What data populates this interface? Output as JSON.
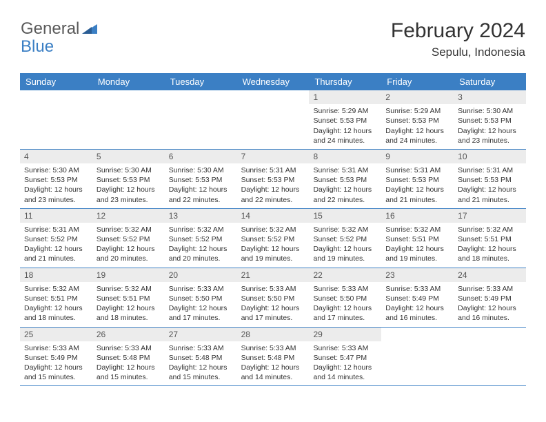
{
  "brand": {
    "part1": "General",
    "part2": "Blue"
  },
  "title": "February 2024",
  "location": "Sepulu, Indonesia",
  "colors": {
    "header_bg": "#3b7fc4",
    "header_text": "#ffffff",
    "daynum_bg": "#ececec",
    "border": "#3b7fc4",
    "body_text": "#333333"
  },
  "day_names": [
    "Sunday",
    "Monday",
    "Tuesday",
    "Wednesday",
    "Thursday",
    "Friday",
    "Saturday"
  ],
  "weeks": [
    [
      {
        "n": "",
        "sr": "",
        "ss": "",
        "dl": ""
      },
      {
        "n": "",
        "sr": "",
        "ss": "",
        "dl": ""
      },
      {
        "n": "",
        "sr": "",
        "ss": "",
        "dl": ""
      },
      {
        "n": "",
        "sr": "",
        "ss": "",
        "dl": ""
      },
      {
        "n": "1",
        "sr": "Sunrise: 5:29 AM",
        "ss": "Sunset: 5:53 PM",
        "dl": "Daylight: 12 hours and 24 minutes."
      },
      {
        "n": "2",
        "sr": "Sunrise: 5:29 AM",
        "ss": "Sunset: 5:53 PM",
        "dl": "Daylight: 12 hours and 24 minutes."
      },
      {
        "n": "3",
        "sr": "Sunrise: 5:30 AM",
        "ss": "Sunset: 5:53 PM",
        "dl": "Daylight: 12 hours and 23 minutes."
      }
    ],
    [
      {
        "n": "4",
        "sr": "Sunrise: 5:30 AM",
        "ss": "Sunset: 5:53 PM",
        "dl": "Daylight: 12 hours and 23 minutes."
      },
      {
        "n": "5",
        "sr": "Sunrise: 5:30 AM",
        "ss": "Sunset: 5:53 PM",
        "dl": "Daylight: 12 hours and 23 minutes."
      },
      {
        "n": "6",
        "sr": "Sunrise: 5:30 AM",
        "ss": "Sunset: 5:53 PM",
        "dl": "Daylight: 12 hours and 22 minutes."
      },
      {
        "n": "7",
        "sr": "Sunrise: 5:31 AM",
        "ss": "Sunset: 5:53 PM",
        "dl": "Daylight: 12 hours and 22 minutes."
      },
      {
        "n": "8",
        "sr": "Sunrise: 5:31 AM",
        "ss": "Sunset: 5:53 PM",
        "dl": "Daylight: 12 hours and 22 minutes."
      },
      {
        "n": "9",
        "sr": "Sunrise: 5:31 AM",
        "ss": "Sunset: 5:53 PM",
        "dl": "Daylight: 12 hours and 21 minutes."
      },
      {
        "n": "10",
        "sr": "Sunrise: 5:31 AM",
        "ss": "Sunset: 5:53 PM",
        "dl": "Daylight: 12 hours and 21 minutes."
      }
    ],
    [
      {
        "n": "11",
        "sr": "Sunrise: 5:31 AM",
        "ss": "Sunset: 5:52 PM",
        "dl": "Daylight: 12 hours and 21 minutes."
      },
      {
        "n": "12",
        "sr": "Sunrise: 5:32 AM",
        "ss": "Sunset: 5:52 PM",
        "dl": "Daylight: 12 hours and 20 minutes."
      },
      {
        "n": "13",
        "sr": "Sunrise: 5:32 AM",
        "ss": "Sunset: 5:52 PM",
        "dl": "Daylight: 12 hours and 20 minutes."
      },
      {
        "n": "14",
        "sr": "Sunrise: 5:32 AM",
        "ss": "Sunset: 5:52 PM",
        "dl": "Daylight: 12 hours and 19 minutes."
      },
      {
        "n": "15",
        "sr": "Sunrise: 5:32 AM",
        "ss": "Sunset: 5:52 PM",
        "dl": "Daylight: 12 hours and 19 minutes."
      },
      {
        "n": "16",
        "sr": "Sunrise: 5:32 AM",
        "ss": "Sunset: 5:51 PM",
        "dl": "Daylight: 12 hours and 19 minutes."
      },
      {
        "n": "17",
        "sr": "Sunrise: 5:32 AM",
        "ss": "Sunset: 5:51 PM",
        "dl": "Daylight: 12 hours and 18 minutes."
      }
    ],
    [
      {
        "n": "18",
        "sr": "Sunrise: 5:32 AM",
        "ss": "Sunset: 5:51 PM",
        "dl": "Daylight: 12 hours and 18 minutes."
      },
      {
        "n": "19",
        "sr": "Sunrise: 5:32 AM",
        "ss": "Sunset: 5:51 PM",
        "dl": "Daylight: 12 hours and 18 minutes."
      },
      {
        "n": "20",
        "sr": "Sunrise: 5:33 AM",
        "ss": "Sunset: 5:50 PM",
        "dl": "Daylight: 12 hours and 17 minutes."
      },
      {
        "n": "21",
        "sr": "Sunrise: 5:33 AM",
        "ss": "Sunset: 5:50 PM",
        "dl": "Daylight: 12 hours and 17 minutes."
      },
      {
        "n": "22",
        "sr": "Sunrise: 5:33 AM",
        "ss": "Sunset: 5:50 PM",
        "dl": "Daylight: 12 hours and 17 minutes."
      },
      {
        "n": "23",
        "sr": "Sunrise: 5:33 AM",
        "ss": "Sunset: 5:49 PM",
        "dl": "Daylight: 12 hours and 16 minutes."
      },
      {
        "n": "24",
        "sr": "Sunrise: 5:33 AM",
        "ss": "Sunset: 5:49 PM",
        "dl": "Daylight: 12 hours and 16 minutes."
      }
    ],
    [
      {
        "n": "25",
        "sr": "Sunrise: 5:33 AM",
        "ss": "Sunset: 5:49 PM",
        "dl": "Daylight: 12 hours and 15 minutes."
      },
      {
        "n": "26",
        "sr": "Sunrise: 5:33 AM",
        "ss": "Sunset: 5:48 PM",
        "dl": "Daylight: 12 hours and 15 minutes."
      },
      {
        "n": "27",
        "sr": "Sunrise: 5:33 AM",
        "ss": "Sunset: 5:48 PM",
        "dl": "Daylight: 12 hours and 15 minutes."
      },
      {
        "n": "28",
        "sr": "Sunrise: 5:33 AM",
        "ss": "Sunset: 5:48 PM",
        "dl": "Daylight: 12 hours and 14 minutes."
      },
      {
        "n": "29",
        "sr": "Sunrise: 5:33 AM",
        "ss": "Sunset: 5:47 PM",
        "dl": "Daylight: 12 hours and 14 minutes."
      },
      {
        "n": "",
        "sr": "",
        "ss": "",
        "dl": ""
      },
      {
        "n": "",
        "sr": "",
        "ss": "",
        "dl": ""
      }
    ]
  ]
}
